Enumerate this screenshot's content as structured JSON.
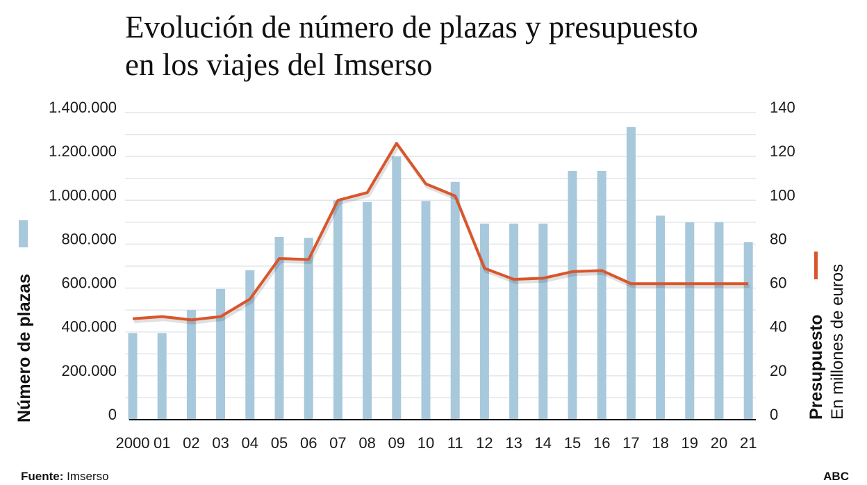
{
  "title": {
    "line1": "Evolución de número de plazas y presupuesto",
    "line2": "en los viajes del Imserso"
  },
  "legend": {
    "bars_label": "Número de plazas",
    "line_label": "Presupuesto",
    "line_sublabel": "En millones de euros"
  },
  "footer": {
    "source_label": "Fuente:",
    "source_value": "Imserso",
    "brand": "ABC"
  },
  "colors": {
    "bars": "#a8c8dc",
    "line": "#d9562b",
    "grid": "#e3e6ea",
    "axis": "#111111"
  },
  "chart_data": {
    "type": "bar+line",
    "categories": [
      "2000",
      "01",
      "02",
      "03",
      "04",
      "05",
      "06",
      "07",
      "08",
      "09",
      "10",
      "11",
      "12",
      "13",
      "14",
      "15",
      "16",
      "17",
      "18",
      "19",
      "20",
      "21"
    ],
    "series": [
      {
        "name": "Número de plazas",
        "type": "bar",
        "axis": "left",
        "values": [
          395000,
          395000,
          500000,
          596000,
          681000,
          833000,
          829000,
          1000000,
          992000,
          1200000,
          997000,
          1084000,
          894000,
          894000,
          894000,
          1134000,
          1134000,
          1334000,
          930000,
          900000,
          900000,
          810000
        ]
      },
      {
        "name": "Presupuesto",
        "type": "line",
        "axis": "right",
        "values": [
          46,
          47,
          45.5,
          47,
          55,
          73.5,
          73,
          100,
          103.5,
          126,
          107.5,
          102,
          69,
          64,
          64.5,
          67.5,
          68,
          62,
          62,
          62,
          62,
          62
        ]
      }
    ],
    "left_axis": {
      "label": "Número de plazas",
      "ylim": [
        0,
        1400000
      ],
      "tick_labels": [
        "0",
        "200.000",
        "400.000",
        "600.000",
        "800.000",
        "1.000.000",
        "1.200.000",
        "1.400.000"
      ]
    },
    "right_axis": {
      "label": "Presupuesto",
      "sublabel": "En millones de euros",
      "ylim": [
        0,
        140
      ],
      "tick_labels": [
        "0",
        "20",
        "40",
        "60",
        "80",
        "100",
        "120",
        "140"
      ]
    },
    "grid": true,
    "legend_placement": "axis-sides"
  }
}
